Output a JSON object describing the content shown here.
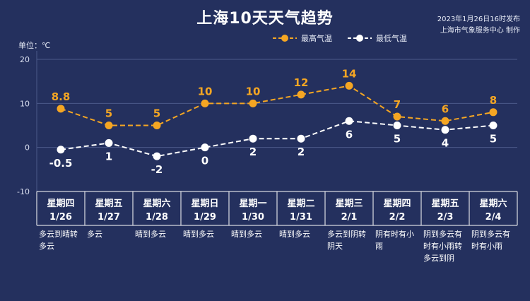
{
  "title": "上海10天天气趋势",
  "publish_time": "2023年1月26日16时发布",
  "publisher": "上海市气象服务中心 制作",
  "unit_label": "单位：℃",
  "colors": {
    "background": "#24305e",
    "high": "#f5a623",
    "low": "#ffffff",
    "grid": "#4b5a8a"
  },
  "chart_data": {
    "type": "line",
    "ylim": [
      -10,
      20
    ],
    "yticks": [
      -10,
      0,
      10,
      20
    ],
    "ytick_labels": [
      "-10",
      "0",
      "10",
      "20"
    ],
    "categories": [
      "1/26",
      "1/27",
      "1/28",
      "1/29",
      "1/30",
      "1/31",
      "2/1",
      "2/2",
      "2/3",
      "2/4"
    ],
    "series": [
      {
        "name": "最高气温",
        "values": [
          8.8,
          5,
          5,
          10,
          10,
          12,
          14,
          7,
          6,
          8
        ],
        "labels": [
          "8.8",
          "5",
          "5",
          "10",
          "10",
          "12",
          "14",
          "7",
          "6",
          "8"
        ]
      },
      {
        "name": "最低气温",
        "values": [
          -0.5,
          1,
          -2,
          0,
          2,
          2,
          6,
          5,
          4,
          5
        ],
        "labels": [
          "-0.5",
          "1",
          "-2",
          "0",
          "2",
          "2",
          "6",
          "5",
          "4",
          "5"
        ]
      }
    ]
  },
  "days": [
    {
      "weekday": "星期四",
      "date": "1/26",
      "weather": [
        "多云到晴转",
        "多云"
      ]
    },
    {
      "weekday": "星期五",
      "date": "1/27",
      "weather": [
        "多云"
      ]
    },
    {
      "weekday": "星期六",
      "date": "1/28",
      "weather": [
        "晴到多云"
      ]
    },
    {
      "weekday": "星期日",
      "date": "1/29",
      "weather": [
        "晴到多云"
      ]
    },
    {
      "weekday": "星期一",
      "date": "1/30",
      "weather": [
        "晴到多云"
      ]
    },
    {
      "weekday": "星期二",
      "date": "1/31",
      "weather": [
        "晴到多云"
      ]
    },
    {
      "weekday": "星期三",
      "date": "2/1",
      "weather": [
        "多云到阴转",
        "阴天"
      ]
    },
    {
      "weekday": "星期四",
      "date": "2/2",
      "weather": [
        "阴有时有小",
        "雨"
      ]
    },
    {
      "weekday": "星期五",
      "date": "2/3",
      "weather": [
        "阴到多云有",
        "时有小雨转",
        "多云到阴"
      ]
    },
    {
      "weekday": "星期六",
      "date": "2/4",
      "weather": [
        "阴到多云有",
        "时有小雨"
      ]
    }
  ]
}
